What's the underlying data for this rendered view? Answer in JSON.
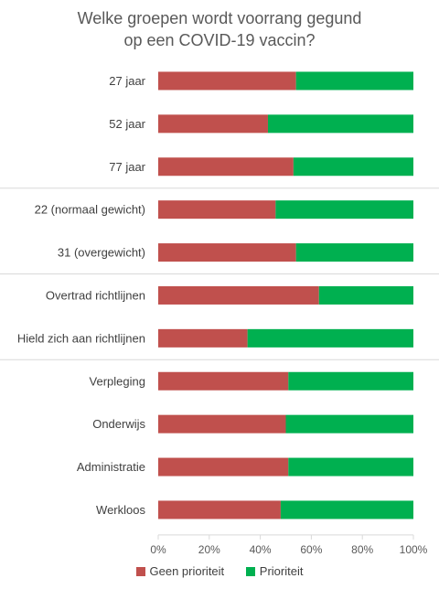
{
  "chart_data": {
    "type": "bar",
    "orientation": "horizontal",
    "stacked": true,
    "title_lines": [
      "Welke groepen wordt voorrang gegund",
      "op een COVID-19 vaccin?"
    ],
    "categories": [
      "27 jaar",
      "52 jaar",
      "77 jaar",
      "22 (normaal gewicht)",
      "31 (overgewicht)",
      "Overtrad richtlijnen",
      "Hield zich aan richtlijnen",
      "Verpleging",
      "Onderwijs",
      "Administratie",
      "Werkloos"
    ],
    "groups": [
      [
        0,
        1,
        2
      ],
      [
        3,
        4
      ],
      [
        5,
        6
      ],
      [
        7,
        8,
        9,
        10
      ]
    ],
    "series": [
      {
        "name": "Geen prioriteit",
        "color": "#c0504d",
        "values": [
          54,
          43,
          53,
          46,
          54,
          63,
          35,
          51,
          50,
          51,
          48
        ]
      },
      {
        "name": "Prioriteit",
        "color": "#00b050",
        "values": [
          46,
          57,
          47,
          54,
          46,
          37,
          65,
          49,
          50,
          49,
          52
        ]
      }
    ],
    "xlim": [
      0,
      100
    ],
    "x_ticks": [
      "0%",
      "20%",
      "40%",
      "60%",
      "80%",
      "100%"
    ],
    "grid": false,
    "legend": "bottom"
  }
}
